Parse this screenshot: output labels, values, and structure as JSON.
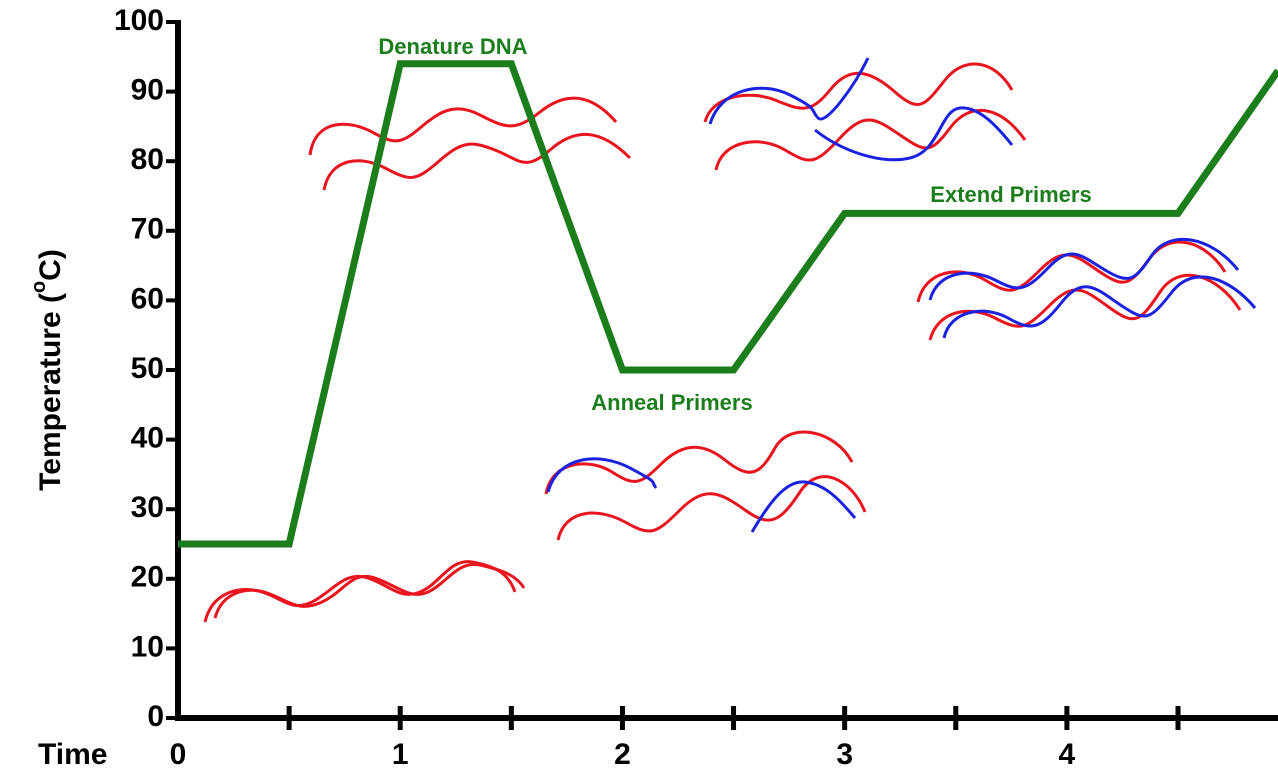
{
  "chart_data": {
    "type": "line",
    "ylabel": {
      "text": "Temperature (",
      "superscript": "o",
      "suffix": "C)"
    },
    "xlabel": "Time",
    "annotations": [
      "Denature DNA",
      "Anneal Primers",
      "Extend Primers"
    ],
    "x": [
      0,
      0.5,
      1,
      1.5,
      2,
      2.5,
      3,
      4.5,
      4.95
    ],
    "series": [
      {
        "color": "#1b7d1b",
        "values": [
          25,
          25,
          94,
          94,
          50,
          50,
          72.5,
          72.5,
          93
        ]
      }
    ],
    "xlim": [
      0,
      4.95
    ],
    "xticks": [
      0,
      1,
      2,
      3,
      4
    ],
    "xminor_ticks": [
      0.5,
      1.5,
      2.5,
      3.5,
      4.5
    ],
    "ylim": [
      0,
      100
    ],
    "yticks": [
      0,
      10,
      20,
      30,
      40,
      50,
      60,
      70,
      80,
      90,
      100
    ]
  }
}
